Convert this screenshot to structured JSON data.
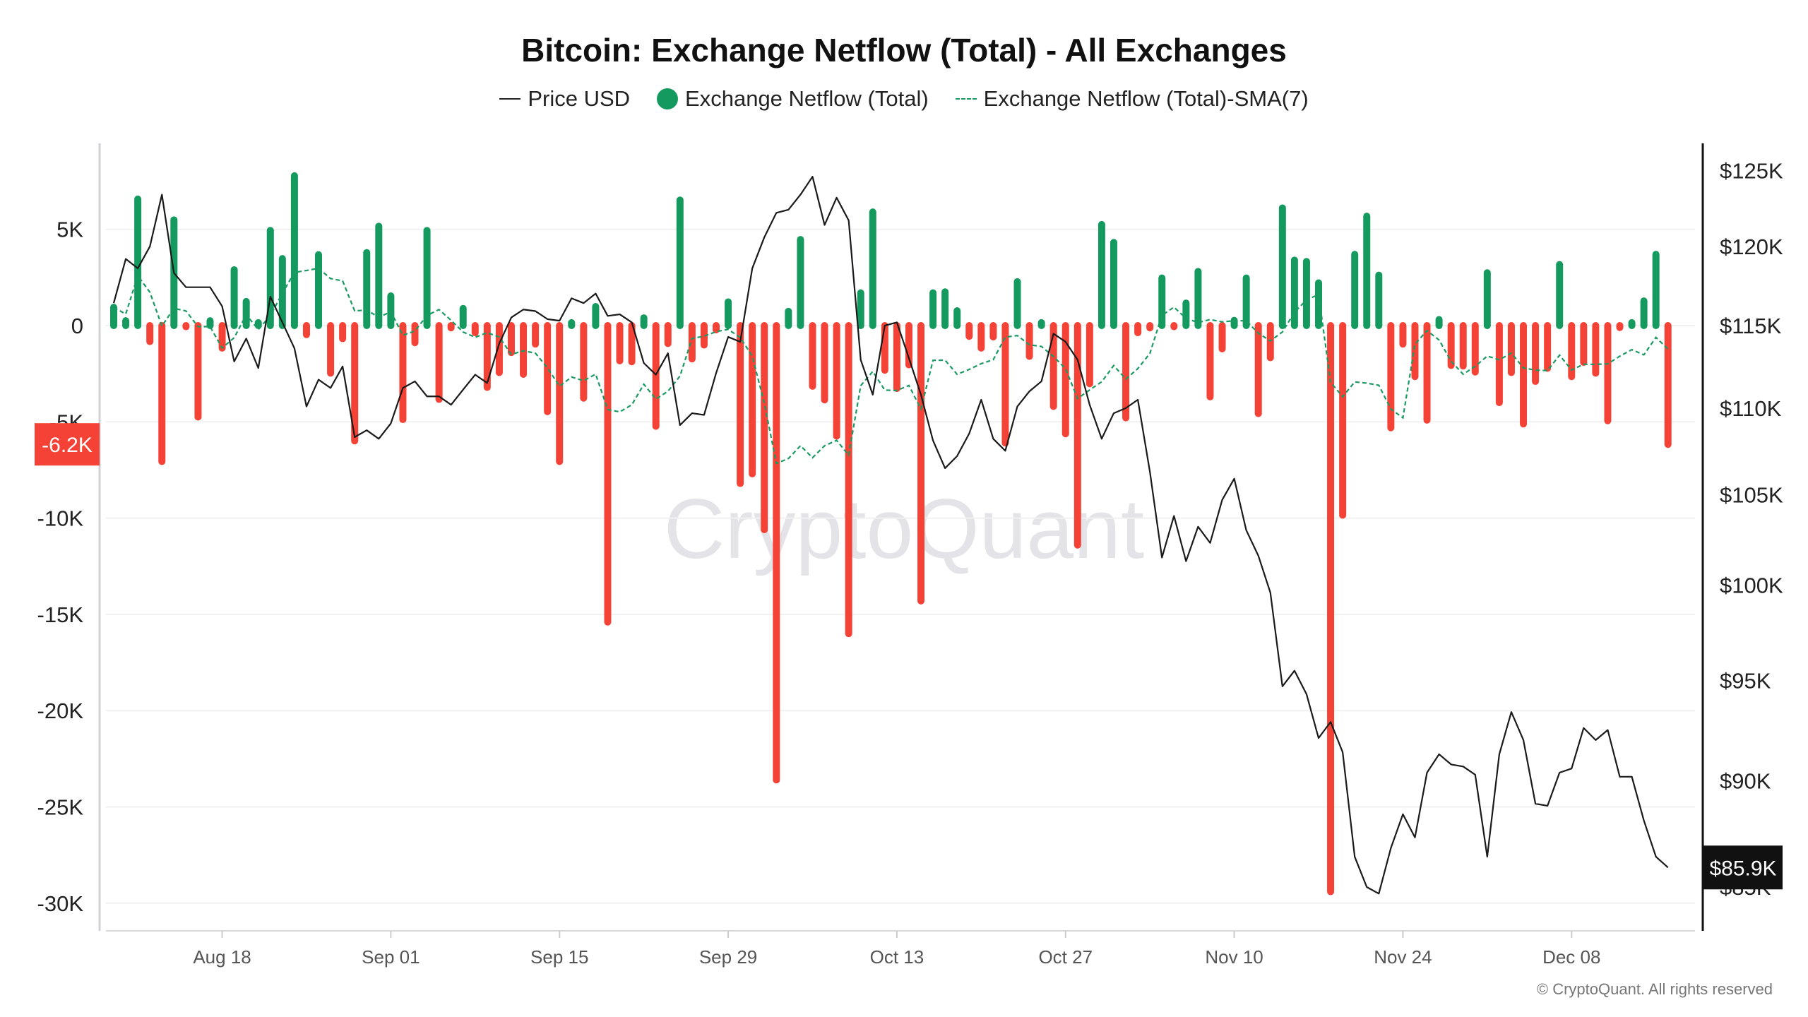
{
  "chart_data": {
    "type": "bar",
    "title": "Bitcoin: Exchange Netflow (Total) - All Exchanges",
    "legend": {
      "placement": "top-center",
      "items": [
        {
          "label": "Price USD",
          "kind": "line"
        },
        {
          "label": "Exchange Netflow (Total)",
          "kind": "bar"
        },
        {
          "label": "Exchange Netflow (Total)-SMA(7)",
          "kind": "dashed-line"
        }
      ]
    },
    "colors": {
      "positive": "#149a5f",
      "negative": "#f44336",
      "price": "#1a1a1a",
      "sma": "#1a9a62",
      "grid": "#f1f1f1"
    },
    "grid": true,
    "x_ticks": [
      "Aug 18",
      "Sep 01",
      "Sep 15",
      "Sep 29",
      "Oct 13",
      "Oct 27",
      "Nov 10",
      "Nov 24",
      "Dec 08"
    ],
    "y_left": {
      "ticks": [
        5000,
        0,
        -5000,
        -10000,
        -15000,
        -20000,
        -25000,
        -30000
      ],
      "tick_labels": [
        "5K",
        "0",
        "-5K",
        "-10K",
        "-15K",
        "-20K",
        "-25K",
        "-30K"
      ]
    },
    "y_right": {
      "scale": "log",
      "ticks": [
        125000,
        120000,
        115000,
        110000,
        105000,
        100000,
        95000,
        90000,
        85000
      ],
      "tick_labels": [
        "$125K",
        "$120K",
        "$115K",
        "$110K",
        "$105K",
        "$100K",
        "$95K",
        "$90K",
        "$85K"
      ]
    },
    "last_value_tags": {
      "netflow": "-6.2K",
      "price": "$85.9K"
    },
    "x": [
      "Aug 09",
      "Aug 10",
      "Aug 11",
      "Aug 12",
      "Aug 13",
      "Aug 14",
      "Aug 15",
      "Aug 16",
      "Aug 17",
      "Aug 18",
      "Aug 19",
      "Aug 20",
      "Aug 21",
      "Aug 22",
      "Aug 23",
      "Aug 24",
      "Aug 25",
      "Aug 26",
      "Aug 27",
      "Aug 28",
      "Aug 29",
      "Aug 30",
      "Aug 31",
      "Sep 01",
      "Sep 02",
      "Sep 03",
      "Sep 04",
      "Sep 05",
      "Sep 06",
      "Sep 07",
      "Sep 08",
      "Sep 09",
      "Sep 10",
      "Sep 11",
      "Sep 12",
      "Sep 13",
      "Sep 14",
      "Sep 15",
      "Sep 16",
      "Sep 17",
      "Sep 18",
      "Sep 19",
      "Sep 20",
      "Sep 21",
      "Sep 22",
      "Sep 23",
      "Sep 24",
      "Sep 25",
      "Sep 26",
      "Sep 27",
      "Sep 28",
      "Sep 29",
      "Sep 30",
      "Oct 01",
      "Oct 02",
      "Oct 03",
      "Oct 04",
      "Oct 05",
      "Oct 06",
      "Oct 07",
      "Oct 08",
      "Oct 09",
      "Oct 10",
      "Oct 11",
      "Oct 12",
      "Oct 13",
      "Oct 14",
      "Oct 15",
      "Oct 16",
      "Oct 17",
      "Oct 18",
      "Oct 19",
      "Oct 20",
      "Oct 21",
      "Oct 22",
      "Oct 23",
      "Oct 24",
      "Oct 25",
      "Oct 26",
      "Oct 27",
      "Oct 28",
      "Oct 29",
      "Oct 30",
      "Oct 31",
      "Nov 01",
      "Nov 02",
      "Nov 03",
      "Nov 04",
      "Nov 05",
      "Nov 06",
      "Nov 07",
      "Nov 08",
      "Nov 09",
      "Nov 10",
      "Nov 11",
      "Nov 12",
      "Nov 13",
      "Nov 14",
      "Nov 15",
      "Nov 16",
      "Nov 17",
      "Nov 18",
      "Nov 19",
      "Nov 20",
      "Nov 21",
      "Nov 22",
      "Nov 23",
      "Nov 24",
      "Nov 25",
      "Nov 26",
      "Nov 27",
      "Nov 28",
      "Nov 29",
      "Nov 30",
      "Dec 01",
      "Dec 02",
      "Dec 03",
      "Dec 04",
      "Dec 05",
      "Dec 06",
      "Dec 07",
      "Dec 08",
      "Dec 09",
      "Dec 10",
      "Dec 11",
      "Dec 12",
      "Dec 13",
      "Dec 14",
      "Dec 15",
      "Dec 16"
    ],
    "series": [
      {
        "name": "Exchange Netflow (Total)",
        "axis": "left",
        "values": [
          950,
          250,
          6570,
          -830,
          -7060,
          5490,
          -60,
          -4750,
          250,
          -1170,
          2900,
          1250,
          150,
          4940,
          3480,
          7780,
          -470,
          3680,
          -2470,
          -680,
          -5990,
          3790,
          5160,
          1540,
          -4880,
          -890,
          4940,
          -3830,
          -120,
          890,
          -370,
          -3210,
          -2440,
          -1400,
          -2530,
          -960,
          -4470,
          -7060,
          150,
          -3770,
          990,
          -15400,
          -1830,
          -1880,
          400,
          -5230,
          -930,
          6520,
          -1730,
          -1010,
          -220,
          1230,
          -8200,
          -7700,
          -10600,
          -23600,
          740,
          4470,
          -3150,
          -3860,
          -5740,
          -16000,
          1700,
          5900,
          -2320,
          -3270,
          -2040,
          -14300,
          1700,
          1750,
          770,
          -560,
          -1170,
          -590,
          -6100,
          2280,
          -1600,
          150,
          -4200,
          -5620,
          -11400,
          -3020,
          5250,
          4320,
          -4790,
          -370,
          -120,
          2470,
          -60,
          1170,
          2810,
          -3700,
          -1210,
          270,
          2470,
          -4570,
          -1670,
          6110,
          3400,
          3330,
          2220,
          -29400,
          -9850,
          3700,
          5680,
          2620,
          -5310,
          -960,
          -2650,
          -4910,
          310,
          -2070,
          -2100,
          -2410,
          2740,
          -4000,
          -2440,
          -5110,
          -2900,
          -2220,
          3170,
          -2650,
          -1910,
          -2470,
          -4940,
          -100,
          150,
          1280,
          3700,
          -6170
        ]
      },
      {
        "name": "Price USD",
        "axis": "right",
        "values": [
          116400,
          119200,
          118600,
          120000,
          123400,
          118300,
          117400,
          117400,
          117400,
          116200,
          112800,
          114200,
          112400,
          116800,
          115200,
          113600,
          110100,
          111700,
          111200,
          112500,
          108300,
          108700,
          108200,
          109100,
          111200,
          111600,
          110700,
          110700,
          110200,
          111100,
          112000,
          111500,
          113900,
          115500,
          116000,
          115900,
          115400,
          115300,
          116700,
          116400,
          117000,
          115600,
          115700,
          115200,
          112700,
          112000,
          113300,
          109000,
          109700,
          109600,
          112100,
          114300,
          114000,
          118600,
          120600,
          122200,
          122400,
          123400,
          124600,
          121400,
          123200,
          121700,
          112900,
          110800,
          115000,
          115200,
          113000,
          110800,
          108100,
          106500,
          107200,
          108500,
          110500,
          108200,
          107500,
          110100,
          111000,
          111600,
          114500,
          114000,
          112900,
          110200,
          108200,
          109700,
          110000,
          110500,
          106300,
          101500,
          103800,
          101300,
          103200,
          102300,
          104700,
          105900,
          103000,
          101600,
          99600,
          94700,
          95500,
          94300,
          92100,
          92900,
          91400,
          86400,
          85000,
          84700,
          86800,
          88400,
          87300,
          90400,
          91300,
          90800,
          90700,
          90300,
          86400,
          91300,
          93400,
          92000,
          88900,
          88800,
          90400,
          90600,
          92600,
          92000,
          92500,
          90200,
          90200,
          88100,
          86400,
          85900
        ]
      },
      {
        "name": "Exchange Netflow (Total)-SMA(7)",
        "axis": "left",
        "window": 7
      }
    ]
  },
  "watermark": "CryptoQuant",
  "copyright": "© CryptoQuant. All rights reserved"
}
